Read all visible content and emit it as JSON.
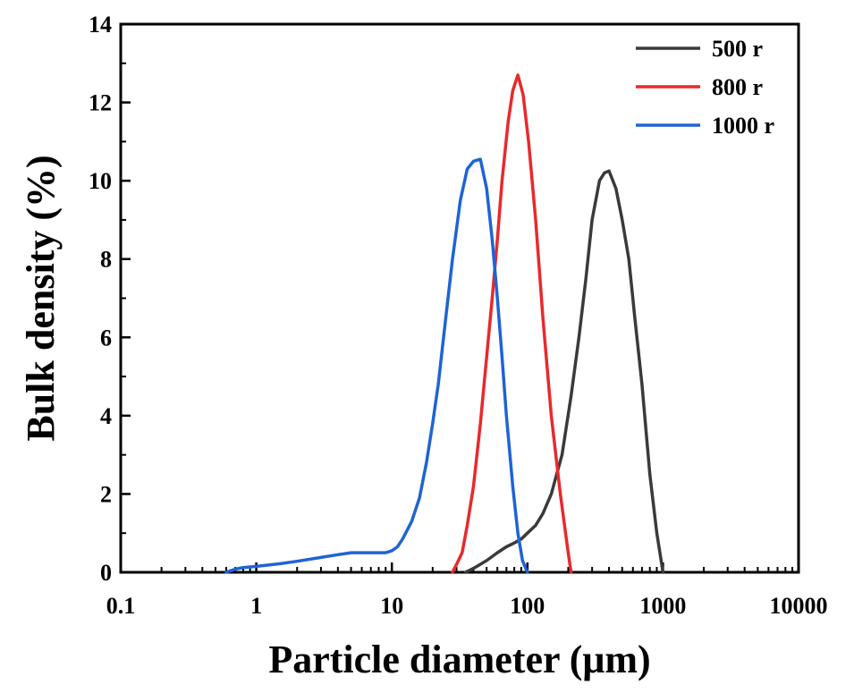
{
  "chart_data": {
    "type": "line",
    "title": "",
    "xlabel": "Particle diameter (μm)",
    "ylabel": "Bulk density (%)",
    "xscale": "log",
    "xlim": [
      0.1,
      10000
    ],
    "ylim": [
      0,
      14
    ],
    "x_ticks": [
      0.1,
      1,
      10,
      100,
      1000,
      10000
    ],
    "x_tick_labels": [
      "0.1",
      "1",
      "10",
      "100",
      "1000",
      "10000"
    ],
    "y_ticks": [
      0,
      2,
      4,
      6,
      8,
      10,
      12,
      14
    ],
    "y_tick_labels": [
      "0",
      "2",
      "4",
      "6",
      "8",
      "10",
      "12",
      "14"
    ],
    "legend_position": "top-right",
    "grid": false,
    "series": [
      {
        "name": "500 r",
        "color": "#3a3a3a",
        "points": [
          [
            35,
            0
          ],
          [
            40,
            0.1
          ],
          [
            50,
            0.3
          ],
          [
            60,
            0.5
          ],
          [
            70,
            0.65
          ],
          [
            80,
            0.75
          ],
          [
            90,
            0.85
          ],
          [
            100,
            1.0
          ],
          [
            115,
            1.2
          ],
          [
            130,
            1.5
          ],
          [
            150,
            2.0
          ],
          [
            180,
            3.0
          ],
          [
            210,
            4.5
          ],
          [
            240,
            6.0
          ],
          [
            270,
            7.5
          ],
          [
            300,
            9.0
          ],
          [
            340,
            10.0
          ],
          [
            370,
            10.2
          ],
          [
            400,
            10.25
          ],
          [
            450,
            9.8
          ],
          [
            500,
            9.0
          ],
          [
            560,
            8.0
          ],
          [
            620,
            6.5
          ],
          [
            700,
            4.8
          ],
          [
            800,
            2.5
          ],
          [
            900,
            1.0
          ],
          [
            1000,
            0
          ]
        ]
      },
      {
        "name": "800 r",
        "color": "#e8292c",
        "points": [
          [
            28,
            0
          ],
          [
            30,
            0.2
          ],
          [
            33,
            0.5
          ],
          [
            36,
            1.2
          ],
          [
            40,
            2.2
          ],
          [
            45,
            3.8
          ],
          [
            50,
            5.5
          ],
          [
            55,
            7.0
          ],
          [
            60,
            8.5
          ],
          [
            65,
            10.0
          ],
          [
            72,
            11.5
          ],
          [
            78,
            12.3
          ],
          [
            85,
            12.7
          ],
          [
            93,
            12.2
          ],
          [
            102,
            11.0
          ],
          [
            115,
            9.0
          ],
          [
            130,
            6.5
          ],
          [
            150,
            4.0
          ],
          [
            175,
            2.0
          ],
          [
            200,
            0.5
          ],
          [
            210,
            0
          ]
        ]
      },
      {
        "name": "1000 r",
        "color": "#1f63d6",
        "points": [
          [
            0.6,
            0
          ],
          [
            0.7,
            0.08
          ],
          [
            0.8,
            0.12
          ],
          [
            1,
            0.15
          ],
          [
            1.5,
            0.22
          ],
          [
            2,
            0.28
          ],
          [
            3,
            0.38
          ],
          [
            4,
            0.45
          ],
          [
            5,
            0.5
          ],
          [
            6,
            0.5
          ],
          [
            7,
            0.5
          ],
          [
            8,
            0.5
          ],
          [
            9,
            0.5
          ],
          [
            10,
            0.55
          ],
          [
            11,
            0.65
          ],
          [
            12,
            0.85
          ],
          [
            14,
            1.3
          ],
          [
            16,
            1.9
          ],
          [
            18,
            2.8
          ],
          [
            20,
            3.8
          ],
          [
            22,
            4.8
          ],
          [
            25,
            6.5
          ],
          [
            28,
            8.0
          ],
          [
            32,
            9.5
          ],
          [
            36,
            10.3
          ],
          [
            40,
            10.5
          ],
          [
            45,
            10.55
          ],
          [
            50,
            9.8
          ],
          [
            55,
            8.5
          ],
          [
            60,
            7.0
          ],
          [
            65,
            5.5
          ],
          [
            70,
            4.0
          ],
          [
            78,
            2.2
          ],
          [
            85,
            1.0
          ],
          [
            92,
            0.3
          ],
          [
            100,
            0
          ]
        ]
      }
    ]
  }
}
